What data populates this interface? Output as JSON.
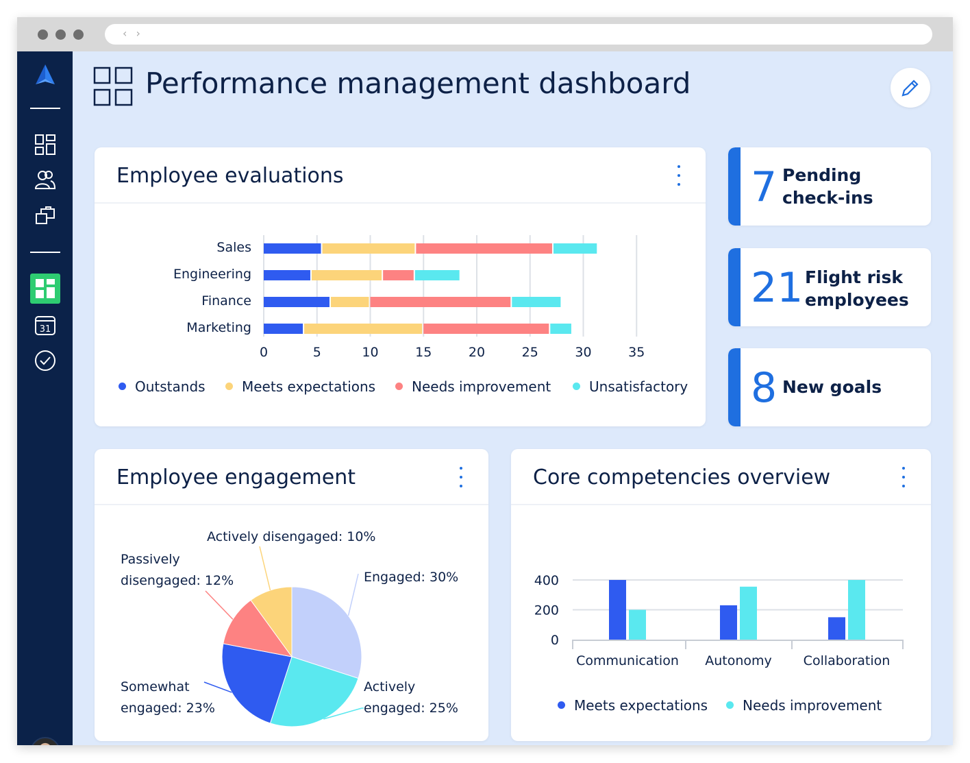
{
  "browser": {
    "nav_arrows": "‹ ›"
  },
  "page": {
    "title": "Performance management dashboard"
  },
  "sidebar": {
    "items": [
      {
        "icon": "logo-icon"
      },
      {
        "icon": "dashboard-grid-icon"
      },
      {
        "icon": "people-icon"
      },
      {
        "icon": "folders-icon"
      },
      {
        "icon": "active-dashboard-icon",
        "active": true
      },
      {
        "icon": "calendar-icon",
        "label": "31"
      },
      {
        "icon": "check-circle-icon"
      }
    ]
  },
  "stats": [
    {
      "value": "7",
      "label_line1": "Pending",
      "label_line2": "check-ins"
    },
    {
      "value": "21",
      "label_line1": "Flight risk",
      "label_line2": "employees"
    },
    {
      "value": "8",
      "label_line1": "New goals",
      "label_line2": ""
    }
  ],
  "colors": {
    "accent": "#1f6fe0",
    "outstands": "#2f5bf0",
    "meets": "#fcd47a",
    "needs": "#fd8282",
    "unsatisfactory": "#5ae8ef",
    "pie_engaged": "#c2d0fb"
  },
  "evaluations": {
    "title": "Employee evaluations",
    "legend": [
      "Outstands",
      "Meets expectations",
      "Needs improvement",
      "Unsatisfactory"
    ]
  },
  "engagement": {
    "title": "Employee engagement"
  },
  "competencies": {
    "title": "Core competencies overview",
    "legend": [
      "Meets expectations",
      "Needs improvement"
    ]
  },
  "chart_data": [
    {
      "type": "bar",
      "orientation": "horizontal",
      "stacked": true,
      "title": "Employee evaluations",
      "categories": [
        "Sales",
        "Engineering",
        "Finance",
        "Marketing"
      ],
      "series": [
        {
          "name": "Outstands",
          "values": [
            5.5,
            4.5,
            6.3,
            3.8
          ]
        },
        {
          "name": "Meets expectations",
          "values": [
            8.8,
            6.7,
            3.7,
            11.2
          ]
        },
        {
          "name": "Needs improvement",
          "values": [
            12.9,
            3.0,
            13.3,
            11.9
          ]
        },
        {
          "name": "Unsatisfactory",
          "values": [
            4.2,
            4.3,
            4.7,
            2.1
          ]
        }
      ],
      "xticks": [
        "0",
        "5",
        "10",
        "15",
        "20",
        "25",
        "30",
        "35"
      ],
      "xlim": [
        0,
        35
      ],
      "grid": true,
      "legend_position": "bottom"
    },
    {
      "type": "pie",
      "title": "Employee engagement",
      "slices": [
        {
          "label": "Engaged: 30%",
          "value": 30
        },
        {
          "label": "Actively engaged: 25%",
          "value": 25
        },
        {
          "label": "Somewhat engaged: 23%",
          "value": 23
        },
        {
          "label": "Passively disengaged: 12%",
          "value": 12
        },
        {
          "label": "Actively disengaged: 10%",
          "value": 10
        }
      ]
    },
    {
      "type": "bar",
      "title": "Core competencies overview",
      "categories": [
        "Communication",
        "Autonomy",
        "Collaboration"
      ],
      "series": [
        {
          "name": "Meets expectations",
          "values": [
            400,
            230,
            150
          ]
        },
        {
          "name": "Needs improvement",
          "values": [
            200,
            355,
            400
          ]
        }
      ],
      "yticks": [
        "0",
        "200",
        "400"
      ],
      "ylim": [
        0,
        400
      ],
      "grid": true,
      "legend_position": "bottom"
    }
  ]
}
